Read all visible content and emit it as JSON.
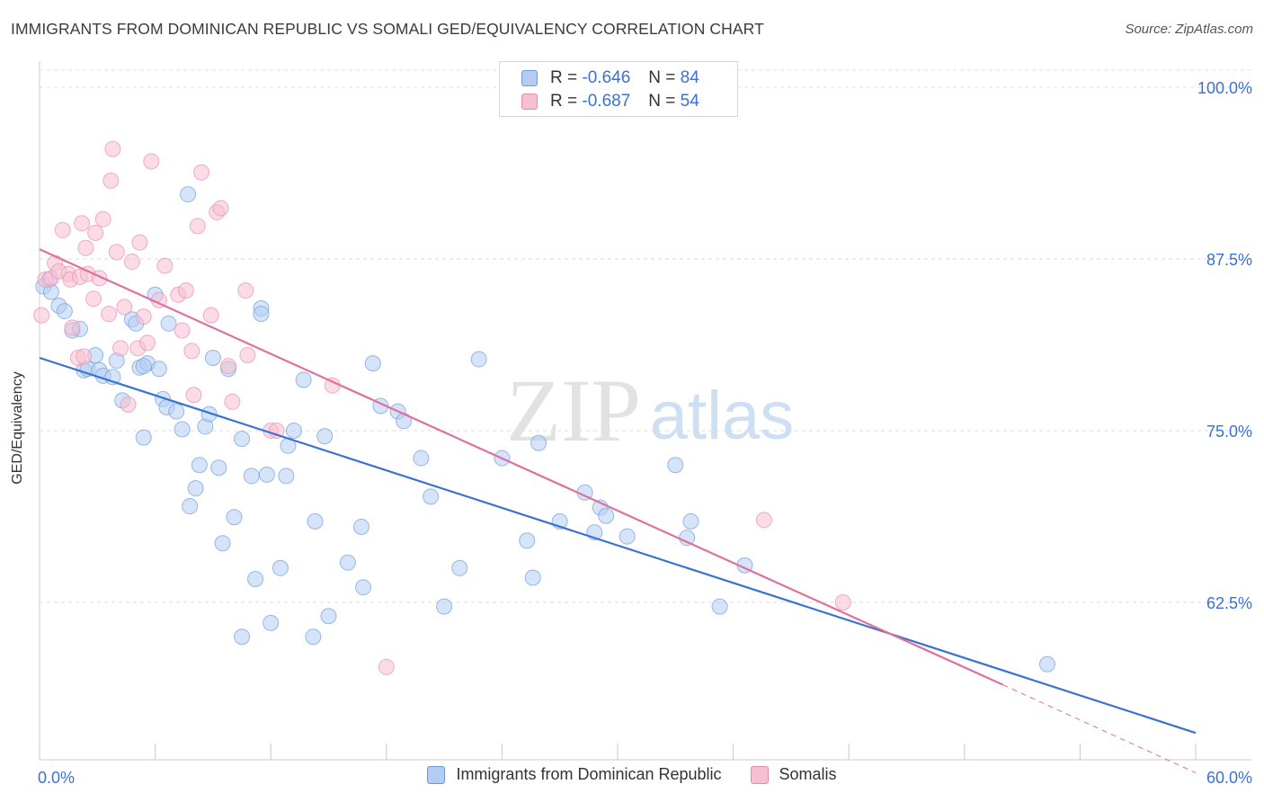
{
  "title": "IMMIGRANTS FROM DOMINICAN REPUBLIC VS SOMALI GED/EQUIVALENCY CORRELATION CHART",
  "source": "Source: ZipAtlas.com",
  "watermark": {
    "zip": "ZIP",
    "atlas": "atlas"
  },
  "colors": {
    "blue": "#3a72d4",
    "pink": "#e0709a",
    "blue_fill": "#b3cdf2",
    "pink_fill": "#f7c0d2",
    "grid": "#dddddd"
  },
  "legend": {
    "rows": [
      {
        "r_label": "R = ",
        "r_value": "-0.646",
        "n_label": "N = ",
        "n_value": "84"
      },
      {
        "r_label": "R = ",
        "r_value": "-0.687",
        "n_label": "N = ",
        "n_value": "54"
      }
    ]
  },
  "chart_data": {
    "type": "scatter",
    "title": "IMMIGRANTS FROM DOMINICAN REPUBLIC VS SOMALI GED/EQUIVALENCY CORRELATION CHART",
    "xlabel": "",
    "ylabel": "GED/Equivalency",
    "xlim": [
      0,
      60
    ],
    "ylim": [
      50,
      101.5
    ],
    "x_tick_labels": [
      "0.0%",
      "60.0%"
    ],
    "y_ticks": [
      62.5,
      75.0,
      87.5,
      100.0
    ],
    "y_tick_labels": [
      "62.5%",
      "75.0%",
      "87.5%",
      "100.0%"
    ],
    "grid": true,
    "legend_position": "top-center",
    "series": [
      {
        "name": "Immigrants from Dominican Republic",
        "color": "#3a72d4",
        "trend": {
          "x": [
            0,
            60
          ],
          "y": [
            80.3,
            53.0
          ]
        },
        "points": [
          [
            0.2,
            85.5
          ],
          [
            0.5,
            86.0
          ],
          [
            0.6,
            85.1
          ],
          [
            1.0,
            84.1
          ],
          [
            1.3,
            83.7
          ],
          [
            1.7,
            82.3
          ],
          [
            2.1,
            82.4
          ],
          [
            2.3,
            79.4
          ],
          [
            2.5,
            79.5
          ],
          [
            2.9,
            80.5
          ],
          [
            3.1,
            79.4
          ],
          [
            3.3,
            79.0
          ],
          [
            3.8,
            78.9
          ],
          [
            4.0,
            80.1
          ],
          [
            4.3,
            77.2
          ],
          [
            4.8,
            83.1
          ],
          [
            5.0,
            82.8
          ],
          [
            5.2,
            79.6
          ],
          [
            5.6,
            79.9
          ],
          [
            5.4,
            79.7
          ],
          [
            5.4,
            74.5
          ],
          [
            6.0,
            84.9
          ],
          [
            6.2,
            79.5
          ],
          [
            6.4,
            77.3
          ],
          [
            6.6,
            76.7
          ],
          [
            6.7,
            82.8
          ],
          [
            7.1,
            76.4
          ],
          [
            7.4,
            75.1
          ],
          [
            7.7,
            92.2
          ],
          [
            7.8,
            69.5
          ],
          [
            8.1,
            70.8
          ],
          [
            8.3,
            72.5
          ],
          [
            8.6,
            75.3
          ],
          [
            8.8,
            76.2
          ],
          [
            9.0,
            80.3
          ],
          [
            9.3,
            72.3
          ],
          [
            9.5,
            66.8
          ],
          [
            9.8,
            79.5
          ],
          [
            10.1,
            68.7
          ],
          [
            10.5,
            74.4
          ],
          [
            10.5,
            60.0
          ],
          [
            11.0,
            71.7
          ],
          [
            11.2,
            64.2
          ],
          [
            11.5,
            83.9
          ],
          [
            11.5,
            83.5
          ],
          [
            11.8,
            71.8
          ],
          [
            12.0,
            61.0
          ],
          [
            12.5,
            65.0
          ],
          [
            12.8,
            71.7
          ],
          [
            12.9,
            73.9
          ],
          [
            13.2,
            75.0
          ],
          [
            13.7,
            78.7
          ],
          [
            14.2,
            60.0
          ],
          [
            14.3,
            68.4
          ],
          [
            14.8,
            74.6
          ],
          [
            15.0,
            61.5
          ],
          [
            16.0,
            65.4
          ],
          [
            16.7,
            68.0
          ],
          [
            16.8,
            63.6
          ],
          [
            17.3,
            79.9
          ],
          [
            17.7,
            76.8
          ],
          [
            18.6,
            76.4
          ],
          [
            18.9,
            75.7
          ],
          [
            19.8,
            73.0
          ],
          [
            20.3,
            70.2
          ],
          [
            21.0,
            62.2
          ],
          [
            21.8,
            65.0
          ],
          [
            22.8,
            80.2
          ],
          [
            24.0,
            73.0
          ],
          [
            25.3,
            67.0
          ],
          [
            25.6,
            64.3
          ],
          [
            25.9,
            74.1
          ],
          [
            27.0,
            68.4
          ],
          [
            28.3,
            70.5
          ],
          [
            28.8,
            67.6
          ],
          [
            29.1,
            69.4
          ],
          [
            29.4,
            68.8
          ],
          [
            30.5,
            67.3
          ],
          [
            33.0,
            72.5
          ],
          [
            33.6,
            67.2
          ],
          [
            33.8,
            68.4
          ],
          [
            35.3,
            62.2
          ],
          [
            36.6,
            65.2
          ],
          [
            52.3,
            58.0
          ]
        ]
      },
      {
        "name": "Somalis",
        "color": "#e0709a",
        "trend": {
          "x": [
            0,
            50
          ],
          "y": [
            88.2,
            56.5
          ]
        },
        "trend_dashed": {
          "x": [
            50,
            60
          ],
          "y": [
            56.5,
            50.1
          ]
        },
        "points": [
          [
            0.1,
            83.4
          ],
          [
            0.3,
            86.0
          ],
          [
            0.6,
            86.1
          ],
          [
            0.8,
            87.2
          ],
          [
            1.0,
            86.6
          ],
          [
            1.2,
            89.6
          ],
          [
            1.5,
            86.4
          ],
          [
            1.6,
            86.0
          ],
          [
            1.7,
            82.5
          ],
          [
            2.0,
            80.3
          ],
          [
            2.1,
            86.2
          ],
          [
            2.2,
            90.1
          ],
          [
            2.3,
            80.4
          ],
          [
            2.4,
            88.3
          ],
          [
            2.5,
            86.4
          ],
          [
            2.8,
            84.6
          ],
          [
            2.9,
            89.4
          ],
          [
            3.1,
            86.1
          ],
          [
            3.3,
            90.4
          ],
          [
            3.6,
            83.5
          ],
          [
            3.7,
            93.2
          ],
          [
            3.8,
            95.5
          ],
          [
            4.0,
            88.0
          ],
          [
            4.2,
            81.0
          ],
          [
            4.4,
            84.0
          ],
          [
            4.6,
            76.9
          ],
          [
            4.8,
            87.3
          ],
          [
            5.1,
            81.0
          ],
          [
            5.2,
            88.7
          ],
          [
            5.4,
            83.3
          ],
          [
            5.6,
            81.4
          ],
          [
            5.8,
            94.6
          ],
          [
            6.2,
            84.5
          ],
          [
            6.5,
            87.0
          ],
          [
            7.2,
            84.9
          ],
          [
            7.4,
            82.3
          ],
          [
            7.6,
            85.2
          ],
          [
            7.9,
            80.8
          ],
          [
            8.0,
            77.6
          ],
          [
            8.2,
            89.9
          ],
          [
            8.4,
            93.8
          ],
          [
            8.9,
            83.4
          ],
          [
            9.2,
            90.9
          ],
          [
            9.4,
            91.2
          ],
          [
            9.8,
            79.7
          ],
          [
            10.0,
            77.1
          ],
          [
            10.7,
            85.2
          ],
          [
            10.8,
            80.5
          ],
          [
            12.0,
            75.0
          ],
          [
            12.3,
            75.0
          ],
          [
            15.2,
            78.3
          ],
          [
            18.0,
            57.8
          ],
          [
            37.6,
            68.5
          ],
          [
            41.7,
            62.5
          ]
        ]
      }
    ]
  }
}
